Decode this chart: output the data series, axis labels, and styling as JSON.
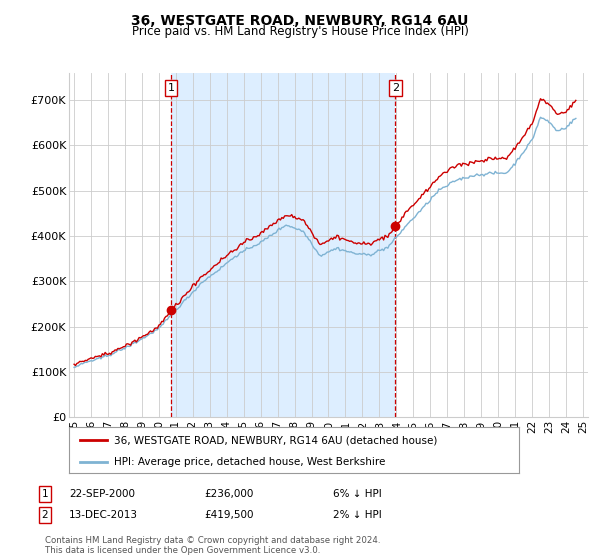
{
  "title1": "36, WESTGATE ROAD, NEWBURY, RG14 6AU",
  "title2": "Price paid vs. HM Land Registry's House Price Index (HPI)",
  "legend1": "36, WESTGATE ROAD, NEWBURY, RG14 6AU (detached house)",
  "legend2": "HPI: Average price, detached house, West Berkshire",
  "footnote": "Contains HM Land Registry data © Crown copyright and database right 2024.\nThis data is licensed under the Open Government Licence v3.0.",
  "ann1_num": "1",
  "ann1_date": "22-SEP-2000",
  "ann1_price": "£236,000",
  "ann1_pct": "6% ↓ HPI",
  "ann2_num": "2",
  "ann2_date": "13-DEC-2013",
  "ann2_price": "£419,500",
  "ann2_pct": "2% ↓ HPI",
  "color_red": "#cc0000",
  "color_blue": "#7fb3d3",
  "shade_color": "#ddeeff",
  "background": "#ffffff",
  "grid_color": "#cccccc",
  "ylim": [
    0,
    760000
  ],
  "yticks": [
    0,
    100000,
    200000,
    300000,
    400000,
    500000,
    600000,
    700000
  ],
  "ytick_labels": [
    "£0",
    "£100K",
    "£200K",
    "£300K",
    "£400K",
    "£500K",
    "£600K",
    "£700K"
  ],
  "sale1_x": 2000.72,
  "sale1_y": 236000,
  "sale2_x": 2013.95,
  "sale2_y": 419500,
  "xlim": [
    1994.7,
    2025.3
  ],
  "xtick_years": [
    1995,
    1996,
    1997,
    1998,
    1999,
    2000,
    2001,
    2002,
    2003,
    2004,
    2005,
    2006,
    2007,
    2008,
    2009,
    2010,
    2011,
    2012,
    2013,
    2014,
    2015,
    2016,
    2017,
    2018,
    2019,
    2020,
    2021,
    2022,
    2023,
    2024,
    2025
  ]
}
